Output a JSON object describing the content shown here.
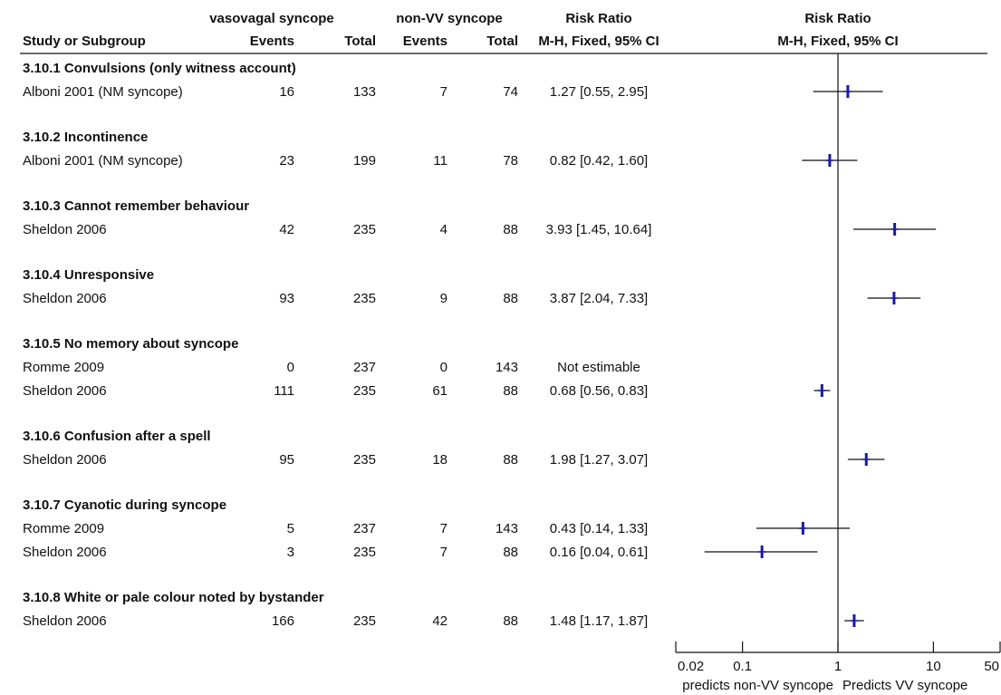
{
  "headers": {
    "group1": "vasovagal syncope",
    "group2": "non-VV syncope",
    "rr_text": "Risk Ratio",
    "rr_plot": "Risk Ratio",
    "study": "Study or Subgroup",
    "events1": "Events",
    "total1": "Total",
    "events2": "Events",
    "total2": "Total",
    "method_text": "M-H, Fixed, 95% CI",
    "method_plot": "M-H, Fixed, 95% CI"
  },
  "chart_data": {
    "type": "forest",
    "x_scale": "log",
    "xlim": [
      0.02,
      50
    ],
    "reference_line": 1,
    "x_ticks": [
      {
        "value": 0.02,
        "label": "0.02"
      },
      {
        "value": 0.1,
        "label": "0.1"
      },
      {
        "value": 1,
        "label": "1"
      },
      {
        "value": 10,
        "label": "10"
      },
      {
        "value": 50,
        "label": "50"
      }
    ],
    "favours_left": "predicts non-VV syncope",
    "favours_right": "Predicts VV syncope",
    "marker_color": "#1a1aa0",
    "subgroups": [
      {
        "title": "3.10.1 Convulsions (only witness account)",
        "studies": [
          {
            "study": "Alboni 2001 (NM syncope)",
            "events1": "16",
            "total1": "133",
            "events2": "7",
            "total2": "74",
            "rr_text": "1.27 [0.55, 2.95]",
            "rr": 1.27,
            "lo": 0.55,
            "hi": 2.95
          }
        ]
      },
      {
        "title": "3.10.2 Incontinence",
        "studies": [
          {
            "study": "Alboni 2001 (NM syncope)",
            "events1": "23",
            "total1": "199",
            "events2": "11",
            "total2": "78",
            "rr_text": "0.82 [0.42, 1.60]",
            "rr": 0.82,
            "lo": 0.42,
            "hi": 1.6
          }
        ]
      },
      {
        "title": "3.10.3 Cannot remember behaviour",
        "studies": [
          {
            "study": "Sheldon 2006",
            "events1": "42",
            "total1": "235",
            "events2": "4",
            "total2": "88",
            "rr_text": "3.93 [1.45, 10.64]",
            "rr": 3.93,
            "lo": 1.45,
            "hi": 10.64
          }
        ]
      },
      {
        "title": "3.10.4 Unresponsive",
        "studies": [
          {
            "study": "Sheldon 2006",
            "events1": "93",
            "total1": "235",
            "events2": "9",
            "total2": "88",
            "rr_text": "3.87 [2.04, 7.33]",
            "rr": 3.87,
            "lo": 2.04,
            "hi": 7.33
          }
        ]
      },
      {
        "title": "3.10.5 No memory about syncope",
        "studies": [
          {
            "study": "Romme 2009",
            "events1": "0",
            "total1": "237",
            "events2": "0",
            "total2": "143",
            "rr_text": "Not estimable",
            "rr": null,
            "lo": null,
            "hi": null
          },
          {
            "study": "Sheldon 2006",
            "events1": "111",
            "total1": "235",
            "events2": "61",
            "total2": "88",
            "rr_text": "0.68 [0.56, 0.83]",
            "rr": 0.68,
            "lo": 0.56,
            "hi": 0.83
          }
        ]
      },
      {
        "title": "3.10.6 Confusion after a spell",
        "studies": [
          {
            "study": "Sheldon 2006",
            "events1": "95",
            "total1": "235",
            "events2": "18",
            "total2": "88",
            "rr_text": "1.98 [1.27, 3.07]",
            "rr": 1.98,
            "lo": 1.27,
            "hi": 3.07
          }
        ]
      },
      {
        "title": "3.10.7 Cyanotic during syncope",
        "studies": [
          {
            "study": "Romme 2009",
            "events1": "5",
            "total1": "237",
            "events2": "7",
            "total2": "143",
            "rr_text": "0.43 [0.14, 1.33]",
            "rr": 0.43,
            "lo": 0.14,
            "hi": 1.33
          },
          {
            "study": "Sheldon 2006",
            "events1": "3",
            "total1": "235",
            "events2": "7",
            "total2": "88",
            "rr_text": "0.16 [0.04, 0.61]",
            "rr": 0.16,
            "lo": 0.04,
            "hi": 0.61
          }
        ]
      },
      {
        "title": "3.10.8 White or pale colour noted by bystander",
        "studies": [
          {
            "study": "Sheldon 2006",
            "events1": "166",
            "total1": "235",
            "events2": "42",
            "total2": "88",
            "rr_text": "1.48 [1.17, 1.87]",
            "rr": 1.48,
            "lo": 1.17,
            "hi": 1.87
          }
        ]
      }
    ]
  }
}
